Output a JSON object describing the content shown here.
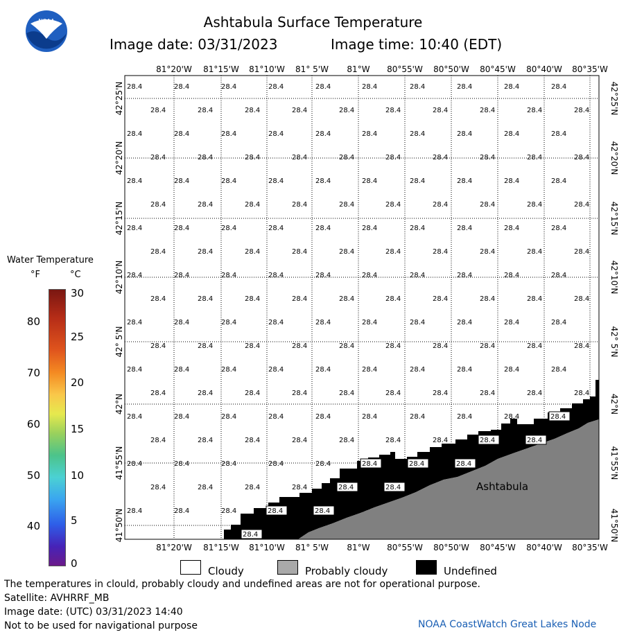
{
  "header": {
    "title": "Ashtabula Surface Temperature",
    "image_date": "Image date: 03/31/2023",
    "image_time": "Image time: 10:40 (EDT)",
    "logo_text": "NOAA"
  },
  "legend": {
    "title": "Water Temperature",
    "unit_f": "°F",
    "unit_c": "°C",
    "f_ticks": [
      "80",
      "70",
      "60",
      "50",
      "40"
    ],
    "c_ticks": [
      "30",
      "25",
      "20",
      "15",
      "10",
      "5",
      "0"
    ],
    "cloudy": "Cloudy",
    "probably_cloudy": "Probably cloudy",
    "undefined": "Undefined",
    "colors": {
      "cloudy": "#ffffff",
      "probably_cloudy": "#a9a9a9",
      "undefined": "#000000",
      "land": "#808080"
    }
  },
  "map": {
    "lon_labels": [
      "81°20'W",
      "81°15'W",
      "81°10'W",
      "81° 5'W",
      "81°W",
      "80°55'W",
      "80°50'W",
      "80°45'W",
      "80°40'W",
      "80°35'W"
    ],
    "lat_labels": [
      "42°25'N",
      "42°20'N",
      "42°15'N",
      "42°10'N",
      "42° 5'N",
      "42°N",
      "41°55'N",
      "41°50'N"
    ],
    "temp_value": "28.4",
    "place_label": "Ashtabula"
  },
  "footer": {
    "disclaimer": "The temperatures in clould, probably cloudy and undefined areas are not for operational purpose.",
    "satellite": "Satellite: AVHRRF_MB",
    "utc_date": "Image date: (UTC) 03/31/2023  14:40",
    "nav_note": "Not to be used for navigational purpose",
    "credit": "NOAA CoastWatch Great Lakes Node"
  }
}
